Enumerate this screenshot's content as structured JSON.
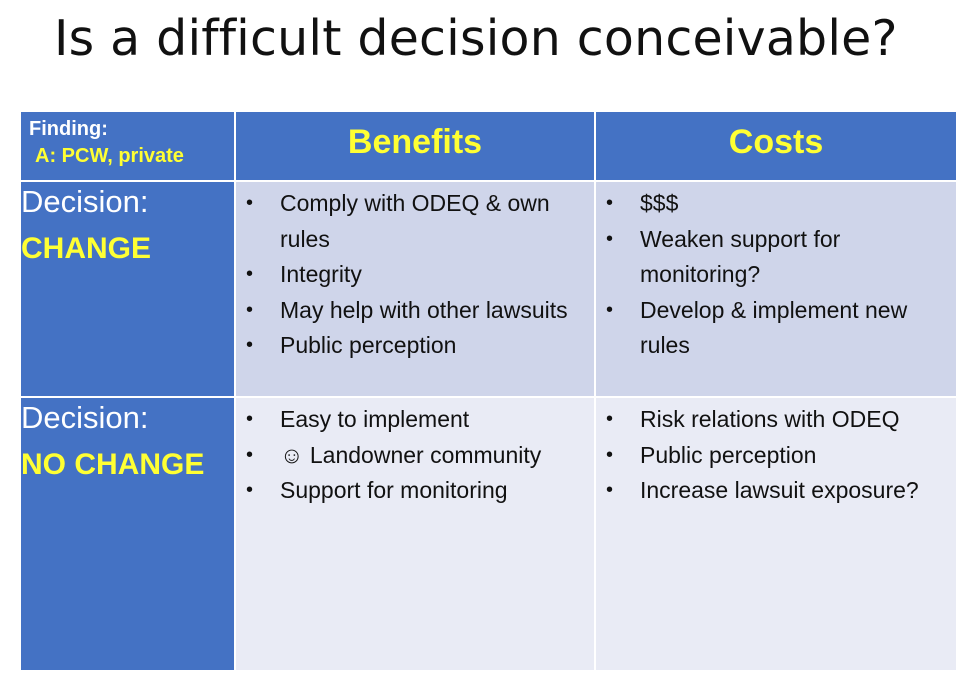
{
  "title": "Is a difficult decision conceivable?",
  "header": {
    "finding_label": "Finding:",
    "finding_value": "A: PCW, private",
    "benefits": "Benefits",
    "costs": "Costs"
  },
  "rows": [
    {
      "decision_label": "Decision:",
      "decision_value": "CHANGE",
      "benefits": [
        "Comply with ODEQ & own rules",
        "Integrity",
        "May help with other lawsuits",
        "Public perception"
      ],
      "costs": [
        "$$$",
        "Weaken support for monitoring?",
        "Develop & implement new rules"
      ]
    },
    {
      "decision_label": "Decision:",
      "decision_value": "NO CHANGE",
      "benefits": [
        "Easy to implement",
        "☺ Landowner community",
        "Support for monitoring"
      ],
      "costs": [
        "Risk relations with ODEQ",
        "Public perception",
        "Increase lawsuit exposure?"
      ]
    }
  ],
  "colors": {
    "header_blue": "#4472c4",
    "highlight_yellow": "#ffff33",
    "row_change_bg": "#cfd5ea",
    "row_nochange_bg": "#e9ebf5"
  }
}
